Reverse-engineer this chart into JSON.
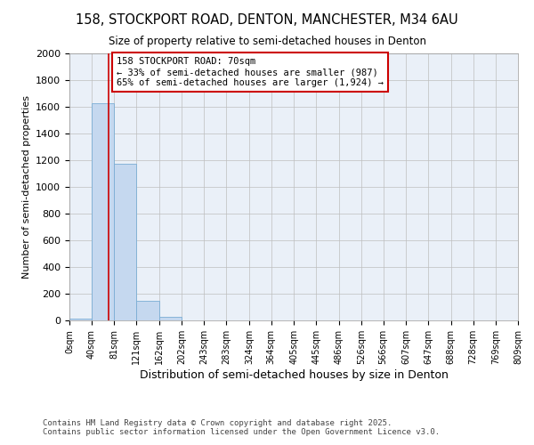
{
  "title_line1": "158, STOCKPORT ROAD, DENTON, MANCHESTER, M34 6AU",
  "title_line2": "Size of property relative to semi-detached houses in Denton",
  "xlabel": "Distribution of semi-detached houses by size in Denton",
  "ylabel": "Number of semi-detached properties",
  "bar_edges": [
    0,
    40,
    81,
    121,
    162,
    202,
    243,
    283,
    324,
    364,
    405,
    445,
    486,
    526,
    566,
    607,
    647,
    688,
    728,
    769,
    809
  ],
  "bar_heights": [
    15,
    1625,
    1175,
    150,
    25,
    0,
    0,
    0,
    0,
    0,
    0,
    0,
    0,
    0,
    0,
    0,
    0,
    0,
    0,
    0
  ],
  "bar_color": "#C5D8EF",
  "bar_edge_color": "#7AADD4",
  "property_size": 70,
  "property_label": "158 STOCKPORT ROAD: 70sqm",
  "annotation_line2": "← 33% of semi-detached houses are smaller (987)",
  "annotation_line3": "65% of semi-detached houses are larger (1,924) →",
  "vline_color": "#CC0000",
  "ylim": [
    0,
    2000
  ],
  "yticks": [
    0,
    200,
    400,
    600,
    800,
    1000,
    1200,
    1400,
    1600,
    1800,
    2000
  ],
  "annotation_box_color": "#CC0000",
  "footer_line1": "Contains HM Land Registry data © Crown copyright and database right 2025.",
  "footer_line2": "Contains public sector information licensed under the Open Government Licence v3.0.",
  "bg_color": "#FFFFFF",
  "plot_bg_color": "#EAF0F8",
  "grid_color": "#BEBEBE",
  "tick_labels": [
    "0sqm",
    "40sqm",
    "81sqm",
    "121sqm",
    "162sqm",
    "202sqm",
    "243sqm",
    "283sqm",
    "324sqm",
    "364sqm",
    "405sqm",
    "445sqm",
    "486sqm",
    "526sqm",
    "566sqm",
    "607sqm",
    "647sqm",
    "688sqm",
    "728sqm",
    "769sqm",
    "809sqm"
  ]
}
